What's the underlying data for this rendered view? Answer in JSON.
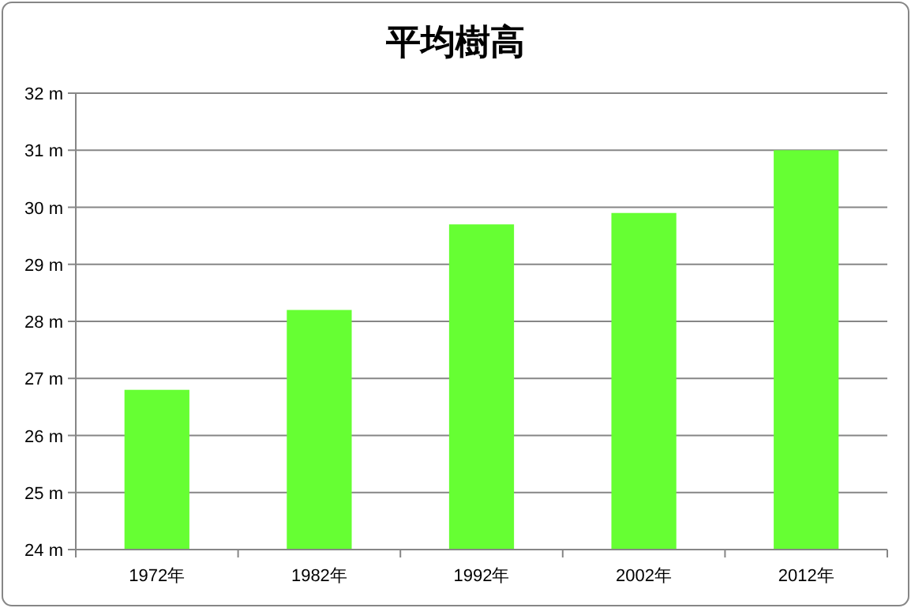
{
  "chart_data": {
    "type": "bar",
    "title": "平均樹高",
    "categories": [
      "1972年",
      "1982年",
      "1992年",
      "2002年",
      "2012年"
    ],
    "values": [
      26.8,
      28.2,
      29.7,
      29.9,
      31.0
    ],
    "color": "#66ff33",
    "ylim": [
      24,
      32
    ],
    "yticks": [
      {
        "value": 24,
        "label": "24 m"
      },
      {
        "value": 25,
        "label": "25 m"
      },
      {
        "value": 26,
        "label": "26 m"
      },
      {
        "value": 27,
        "label": "27 m"
      },
      {
        "value": 28,
        "label": "28 m"
      },
      {
        "value": 29,
        "label": "29 m"
      },
      {
        "value": 30,
        "label": "30 m"
      },
      {
        "value": 31,
        "label": "31 m"
      },
      {
        "value": 32,
        "label": "32 m"
      }
    ],
    "grid": "y"
  }
}
